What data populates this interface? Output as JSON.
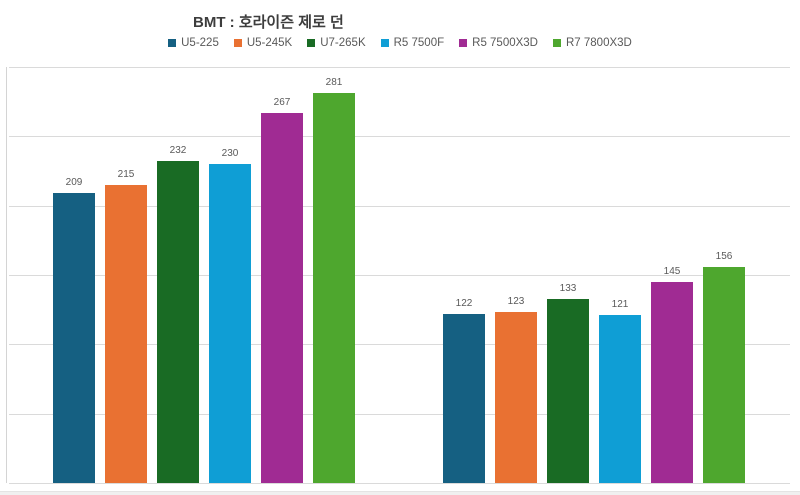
{
  "chart_data": {
    "type": "bar",
    "title": "BMT : 호라이즌 제로 던",
    "categories": [
      "",
      ""
    ],
    "series": [
      {
        "name": "U5-225",
        "color": "#156082",
        "values": [
          209,
          122
        ]
      },
      {
        "name": "U5-245K",
        "color": "#E97132",
        "values": [
          215,
          123
        ]
      },
      {
        "name": "U7-265K",
        "color": "#196B24",
        "values": [
          232,
          133
        ]
      },
      {
        "name": "R5 7500F",
        "color": "#0F9ED5",
        "values": [
          230,
          121
        ]
      },
      {
        "name": "R5 7500X3D",
        "color": "#A02B93",
        "values": [
          267,
          145
        ]
      },
      {
        "name": "R7 7800X3D",
        "color": "#4EA72E",
        "values": [
          281,
          156
        ]
      }
    ],
    "xlabel": "",
    "ylabel": "",
    "ylim": [
      0,
      300
    ],
    "gridline_step": 50,
    "grid": true,
    "tick_labels_visible": false,
    "legend_position": "top",
    "data_labels": "above-bars"
  },
  "colors": {
    "background": "#ffffff",
    "gridline": "#dadada",
    "title_text": "#3d3d3d",
    "label_text": "#595959"
  }
}
